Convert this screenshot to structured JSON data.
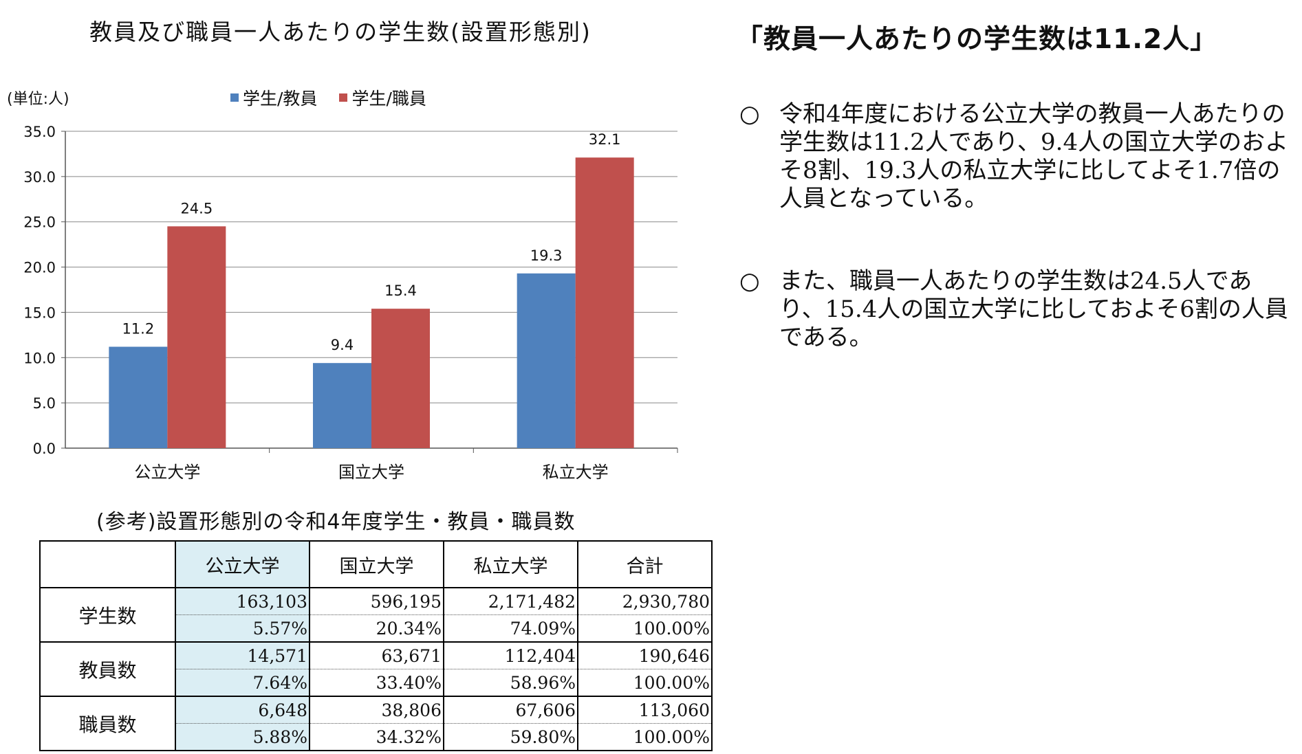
{
  "chart_title": "教員及び職員一人あたりの学生数(設置形態別)",
  "chart_data": {
    "type": "bar",
    "title": "教員及び職員一人あたりの学生数(設置形態別)",
    "unit_label": "(単位:人)",
    "categories": [
      "公立大学",
      "国立大学",
      "私立大学"
    ],
    "series": [
      {
        "name": "学生/教員",
        "values": [
          11.2,
          9.4,
          19.3
        ],
        "color": "#4f81bd"
      },
      {
        "name": "学生/職員",
        "values": [
          24.5,
          15.4,
          32.1
        ],
        "color": "#c0504d"
      }
    ],
    "ylim": [
      0,
      35
    ],
    "yticks": [
      "0.0",
      "5.0",
      "10.0",
      "15.0",
      "20.0",
      "25.0",
      "30.0",
      "35.0"
    ],
    "grid": true,
    "legend": "top"
  },
  "table": {
    "caption": "(参考)設置形態別の令和4年度学生・教員・職員数",
    "columns": [
      "公立大学",
      "国立大学",
      "私立大学",
      "合計"
    ],
    "rows": [
      {
        "label": "学生数",
        "values": [
          "163,103",
          "596,195",
          "2,171,482",
          "2,930,780"
        ],
        "shares": [
          "5.57%",
          "20.34%",
          "74.09%",
          "100.00%"
        ]
      },
      {
        "label": "教員数",
        "values": [
          "14,571",
          "63,671",
          "112,404",
          "190,646"
        ],
        "shares": [
          "7.64%",
          "33.40%",
          "58.96%",
          "100.00%"
        ]
      },
      {
        "label": "職員数",
        "values": [
          "6,648",
          "38,806",
          "67,606",
          "113,060"
        ],
        "shares": [
          "5.88%",
          "34.32%",
          "59.80%",
          "100.00%"
        ]
      }
    ]
  },
  "headline": "「教員一人あたりの学生数は11.2人」",
  "bullets": [
    {
      "mark": "○",
      "text": "令和4年度における公立大学の教員一人あたりの学生数は11.2人であり、9.4人の国立大学のおよそ8割、19.3人の私立大学に比してよそ1.7倍の人員となっている。"
    },
    {
      "mark": "○",
      "text": "また、職員一人あたりの学生数は24.5人であり、15.4人の国立大学に比しておよそ6割の人員である。"
    }
  ]
}
